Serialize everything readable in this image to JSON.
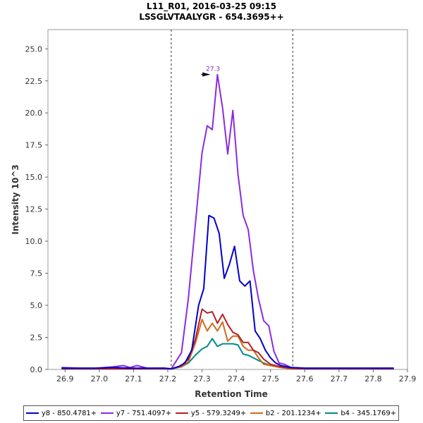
{
  "chart_data": {
    "type": "line",
    "title": "L11_R01, 2016-03-25 09:15",
    "subtitle": "LSSGLVTAALYGR - 654.3695++",
    "xlabel": "Retention Time",
    "ylabel": "Intensity 10^3",
    "xlim": [
      26.85,
      27.9
    ],
    "ylim": [
      0,
      26.5
    ],
    "x_ticks": [
      26.9,
      27.0,
      27.1,
      27.2,
      27.3,
      27.4,
      27.5,
      27.6,
      27.7,
      27.8,
      27.9
    ],
    "x_tick_labels": [
      "26.9",
      "27.0",
      "27.1",
      "27.2",
      "27.3",
      "27.4",
      "27.5",
      "27.6",
      "27.7",
      "27.8",
      "27.9"
    ],
    "y_ticks": [
      0,
      2.5,
      5,
      7.5,
      10,
      12.5,
      15,
      17.5,
      20,
      22.5,
      25
    ],
    "y_tick_labels": [
      "0.0",
      "2.5",
      "5.0",
      "7.5",
      "10.0",
      "12.5",
      "15.0",
      "17.5",
      "20.0",
      "22.5",
      "25.0"
    ],
    "integration_bounds": [
      27.21,
      27.565
    ],
    "peak_annotation": {
      "x": 27.33,
      "y": 23.0,
      "label": "27.3",
      "color": "#8a2be2"
    },
    "legend_position": "bottom",
    "series": [
      {
        "name": "y8 - 850.4781+",
        "color": "#0000cc",
        "x": [
          26.89,
          26.94,
          26.99,
          27.04,
          27.09,
          27.14,
          27.19,
          27.21,
          27.23,
          27.25,
          27.27,
          27.29,
          27.305,
          27.32,
          27.335,
          27.35,
          27.365,
          27.38,
          27.395,
          27.41,
          27.425,
          27.44,
          27.455,
          27.47,
          27.485,
          27.5,
          27.515,
          27.53,
          27.56,
          27.6,
          27.7,
          27.8,
          27.86
        ],
        "y": [
          0.1,
          0.1,
          0.1,
          0.15,
          0.1,
          0.1,
          0.1,
          0.05,
          0.2,
          0.5,
          1.5,
          5.0,
          6.3,
          12.0,
          11.8,
          10.6,
          7.1,
          8.2,
          9.6,
          6.9,
          6.5,
          6.9,
          3.0,
          2.4,
          1.5,
          0.9,
          0.5,
          0.3,
          0.15,
          0.1,
          0.1,
          0.1,
          0.1
        ]
      },
      {
        "name": "y7 - 751.4097+",
        "color": "#8a2be2",
        "x": [
          26.89,
          26.94,
          26.99,
          27.04,
          27.07,
          27.09,
          27.11,
          27.14,
          27.19,
          27.21,
          27.24,
          27.26,
          27.28,
          27.3,
          27.315,
          27.33,
          27.345,
          27.36,
          27.375,
          27.39,
          27.405,
          27.42,
          27.435,
          27.45,
          27.465,
          27.48,
          27.495,
          27.51,
          27.525,
          27.54,
          27.56,
          27.6,
          27.7,
          27.8,
          27.86
        ],
        "y": [
          0.15,
          0.1,
          0.1,
          0.2,
          0.3,
          0.15,
          0.3,
          0.1,
          0.1,
          0.05,
          1.3,
          5.5,
          11.2,
          16.9,
          19.0,
          18.7,
          23.0,
          20.4,
          16.8,
          20.2,
          15.2,
          12.0,
          10.9,
          7.7,
          5.5,
          3.8,
          3.4,
          1.4,
          0.5,
          0.4,
          0.15,
          0.1,
          0.1,
          0.1,
          0.1
        ]
      },
      {
        "name": "y5 - 579.3249+",
        "color": "#b22222",
        "x": [
          26.89,
          26.99,
          27.09,
          27.19,
          27.21,
          27.24,
          27.26,
          27.28,
          27.3,
          27.315,
          27.33,
          27.345,
          27.36,
          27.375,
          27.39,
          27.405,
          27.42,
          27.435,
          27.45,
          27.465,
          27.48,
          27.5,
          27.53,
          27.56,
          27.6,
          27.7,
          27.8,
          27.86
        ],
        "y": [
          0.05,
          0.05,
          0.05,
          0.05,
          0.05,
          0.3,
          0.8,
          2.3,
          4.7,
          4.4,
          4.5,
          3.6,
          4.3,
          3.5,
          2.9,
          2.7,
          2.1,
          2.1,
          1.5,
          1.3,
          0.8,
          0.4,
          0.2,
          0.1,
          0.05,
          0.05,
          0.05,
          0.05
        ]
      },
      {
        "name": "b2 - 201.1234+",
        "color": "#d2691e",
        "x": [
          26.89,
          26.99,
          27.09,
          27.19,
          27.21,
          27.24,
          27.26,
          27.28,
          27.3,
          27.315,
          27.33,
          27.345,
          27.36,
          27.375,
          27.39,
          27.405,
          27.42,
          27.435,
          27.45,
          27.465,
          27.48,
          27.5,
          27.53,
          27.56,
          27.6,
          27.7,
          27.8,
          27.86
        ],
        "y": [
          0.05,
          0.05,
          0.05,
          0.05,
          0.05,
          0.2,
          0.6,
          2.0,
          3.9,
          3.0,
          3.6,
          3.0,
          3.7,
          2.2,
          2.6,
          2.6,
          1.8,
          1.5,
          1.5,
          0.9,
          0.4,
          0.3,
          0.15,
          0.05,
          0.05,
          0.05,
          0.05,
          0.05
        ]
      },
      {
        "name": "b4 - 345.1769+",
        "color": "#008b8b",
        "x": [
          26.89,
          26.99,
          27.09,
          27.19,
          27.21,
          27.24,
          27.26,
          27.28,
          27.3,
          27.315,
          27.33,
          27.345,
          27.36,
          27.375,
          27.39,
          27.405,
          27.42,
          27.435,
          27.45,
          27.465,
          27.48,
          27.5,
          27.53,
          27.56,
          27.6,
          27.7,
          27.8,
          27.86
        ],
        "y": [
          0.05,
          0.05,
          0.05,
          0.1,
          0.05,
          0.2,
          0.5,
          1.1,
          1.6,
          1.8,
          2.4,
          1.8,
          2.0,
          2.0,
          2.0,
          1.9,
          1.2,
          1.1,
          0.9,
          0.7,
          0.5,
          0.3,
          0.15,
          0.05,
          0.05,
          0.05,
          0.05,
          0.05
        ]
      }
    ]
  }
}
